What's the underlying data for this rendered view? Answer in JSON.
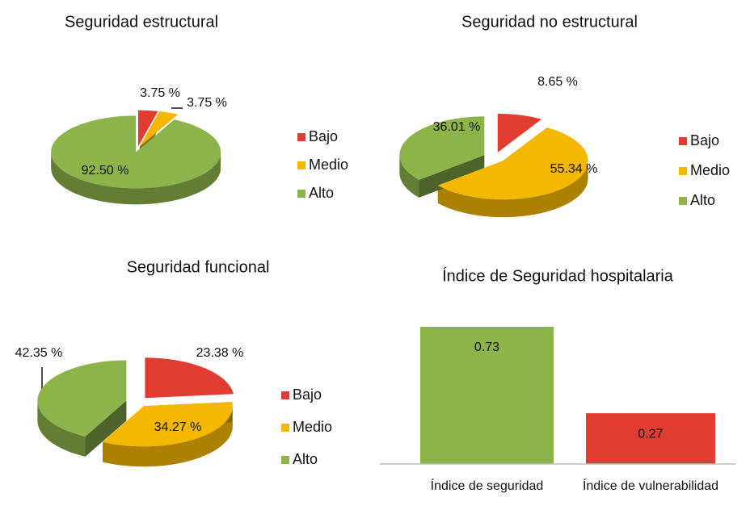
{
  "chart_data": [
    {
      "type": "pie",
      "title": "Seguridad estructural",
      "categories": [
        "Bajo",
        "Medio",
        "Alto"
      ],
      "values": [
        3.75,
        3.75,
        92.5
      ],
      "value_labels": [
        "3.75 %",
        "3.75 %",
        "92.50 %"
      ],
      "colors": [
        "#e03c31",
        "#f5b800",
        "#8db44a"
      ]
    },
    {
      "type": "pie",
      "title": "Seguridad no estructural",
      "categories": [
        "Bajo",
        "Medio",
        "Alto"
      ],
      "values": [
        8.65,
        55.34,
        36.01
      ],
      "value_labels": [
        "8.65 %",
        "55.34 %",
        "36.01 %"
      ],
      "colors": [
        "#e03c31",
        "#f5b800",
        "#8db44a"
      ]
    },
    {
      "type": "pie",
      "title": "Seguridad funcional",
      "categories": [
        "Bajo",
        "Medio",
        "Alto"
      ],
      "values": [
        23.38,
        34.27,
        42.35
      ],
      "value_labels": [
        "23.38 %",
        "34.27 %",
        "42.35 %"
      ],
      "colors": [
        "#e03c31",
        "#f5b800",
        "#8db44a"
      ]
    },
    {
      "type": "bar",
      "title": "Índice de Seguridad hospitalaria",
      "categories": [
        "Índice de seguridad",
        "Índice de vulnerabilidad"
      ],
      "values": [
        0.73,
        0.27
      ],
      "colors": [
        "#8db44a",
        "#e03c31"
      ]
    }
  ]
}
